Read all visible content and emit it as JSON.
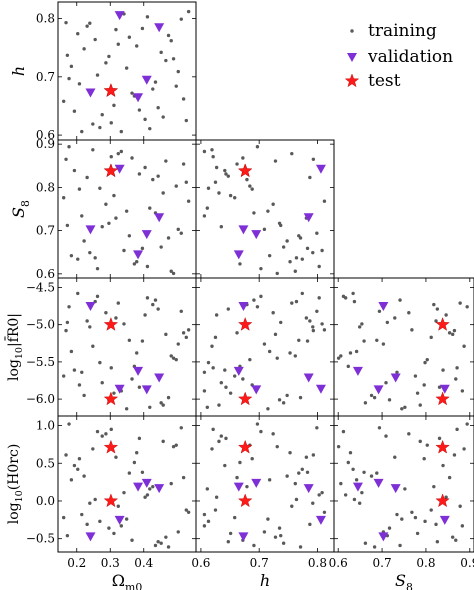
{
  "chart_data": {
    "type": "scatter",
    "subtype": "corner-plot",
    "title": "",
    "parameters": [
      {
        "key": "Om",
        "label": "Ωm0",
        "range": [
          0.15,
          0.55
        ],
        "ticks": [
          {
            "v": 0.2,
            "t": "0.2"
          },
          {
            "v": 0.3,
            "t": "0.3"
          },
          {
            "v": 0.4,
            "t": "0.4"
          }
        ]
      },
      {
        "key": "h",
        "label": "h",
        "range": [
          0.595,
          0.825
        ],
        "ticks": [
          {
            "v": 0.6,
            "t": "0.6"
          },
          {
            "v": 0.7,
            "t": "0.7"
          },
          {
            "v": 0.8,
            "t": "0.8"
          }
        ]
      },
      {
        "key": "S8",
        "label": "S8",
        "range": [
          0.595,
          0.905
        ],
        "ticks": [
          {
            "v": 0.6,
            "t": "0.6"
          },
          {
            "v": 0.7,
            "t": "0.7"
          },
          {
            "v": 0.8,
            "t": "0.8"
          },
          {
            "v": 0.9,
            "t": "0.9"
          }
        ]
      },
      {
        "key": "fR0",
        "label": "log10|f̄R0|",
        "range": [
          -6.2,
          -4.4
        ],
        "ticks": [
          {
            "v": -4.5,
            "t": "−4.5"
          },
          {
            "v": -5.0,
            "t": "−5.0"
          },
          {
            "v": -5.5,
            "t": "−5.5"
          },
          {
            "v": -6.0,
            "t": "−6.0"
          }
        ]
      },
      {
        "key": "rc",
        "label": "log10(H0 rc)",
        "range": [
          -0.65,
          1.1
        ],
        "ticks": [
          {
            "v": -0.5,
            "t": "−0.5"
          },
          {
            "v": 0.0,
            "t": "0.0"
          },
          {
            "v": 0.5,
            "t": "0.5"
          },
          {
            "v": 1.0,
            "t": "1.0"
          }
        ]
      }
    ],
    "axis_labels": {
      "Om": {
        "pre": "Ω",
        "sub": "m0"
      },
      "h": {
        "pre": "h",
        "sub": ""
      },
      "S8": {
        "pre": "S",
        "sub": "8"
      },
      "fR0": {
        "pre": "log",
        "sub": "10",
        "post": "|f̄R0|"
      },
      "rc": {
        "pre": "log",
        "sub": "10",
        "post": "(H0rc)"
      }
    },
    "panels": [
      {
        "x": "Om",
        "y": "h"
      },
      {
        "x": "Om",
        "y": "S8"
      },
      {
        "x": "h",
        "y": "S8"
      },
      {
        "x": "Om",
        "y": "fR0"
      },
      {
        "x": "h",
        "y": "fR0"
      },
      {
        "x": "S8",
        "y": "fR0"
      },
      {
        "x": "Om",
        "y": "rc"
      },
      {
        "x": "h",
        "y": "rc"
      },
      {
        "x": "S8",
        "y": "rc"
      }
    ],
    "series": [
      {
        "name": "training",
        "marker": "dot",
        "color": "#595959",
        "points": [
          {
            "Om": 0.168,
            "h": 0.793,
            "S8": 0.865,
            "fR0": -5.08,
            "rc": 0.61
          },
          {
            "Om": 0.215,
            "h": 0.606,
            "S8": 0.734,
            "fR0": -5.64,
            "rc": -0.18
          },
          {
            "Om": 0.262,
            "h": 0.703,
            "S8": 0.612,
            "fR0": -4.62,
            "rc": 0.92
          },
          {
            "Om": 0.311,
            "h": 0.651,
            "S8": 0.781,
            "fR0": -5.92,
            "rc": -0.43
          },
          {
            "Om": 0.357,
            "h": 0.768,
            "S8": 0.688,
            "fR0": -5.21,
            "rc": 0.37
          },
          {
            "Om": 0.404,
            "h": 0.627,
            "S8": 0.846,
            "fR0": -4.87,
            "rc": 0.05
          },
          {
            "Om": 0.452,
            "h": 0.742,
            "S8": 0.662,
            "fR0": -6.05,
            "rc": -0.56
          },
          {
            "Om": 0.497,
            "h": 0.684,
            "S8": 0.803,
            "fR0": -5.47,
            "rc": 0.74
          },
          {
            "Om": 0.184,
            "h": 0.718,
            "S8": 0.642,
            "fR0": -5.36,
            "rc": 0.28
          },
          {
            "Om": 0.231,
            "h": 0.787,
            "S8": 0.823,
            "fR0": -4.95,
            "rc": -0.31
          },
          {
            "Om": 0.276,
            "h": 0.635,
            "S8": 0.709,
            "fR0": -5.78,
            "rc": 0.86
          },
          {
            "Om": 0.324,
            "h": 0.756,
            "S8": 0.878,
            "fR0": -4.71,
            "rc": -0.07
          },
          {
            "Om": 0.372,
            "h": 0.667,
            "S8": 0.623,
            "fR0": -5.56,
            "rc": 0.51
          },
          {
            "Om": 0.418,
            "h": 0.611,
            "S8": 0.752,
            "fR0": -6.11,
            "rc": 0.16
          },
          {
            "Om": 0.466,
            "h": 0.728,
            "S8": 0.861,
            "fR0": -5.13,
            "rc": -0.48
          },
          {
            "Om": 0.512,
            "h": 0.799,
            "S8": 0.694,
            "fR0": -4.82,
            "rc": 0.97
          },
          {
            "Om": 0.161,
            "h": 0.658,
            "S8": 0.776,
            "fR0": -5.69,
            "rc": -0.22
          },
          {
            "Om": 0.203,
            "h": 0.774,
            "S8": 0.634,
            "fR0": -4.58,
            "rc": 0.42
          },
          {
            "Om": 0.248,
            "h": 0.619,
            "S8": 0.887,
            "fR0": -5.29,
            "rc": 0.69
          },
          {
            "Om": 0.296,
            "h": 0.735,
            "S8": 0.717,
            "fR0": -6.01,
            "rc": -0.36
          },
          {
            "Om": 0.341,
            "h": 0.808,
            "S8": 0.654,
            "fR0": -4.99,
            "rc": 0.11
          },
          {
            "Om": 0.387,
            "h": 0.643,
            "S8": 0.831,
            "fR0": -5.84,
            "rc": 0.83
          },
          {
            "Om": 0.435,
            "h": 0.691,
            "S8": 0.741,
            "fR0": -4.67,
            "rc": -0.59
          },
          {
            "Om": 0.482,
            "h": 0.762,
            "S8": 0.606,
            "fR0": -5.42,
            "rc": 0.23
          },
          {
            "Om": 0.527,
            "h": 0.625,
            "S8": 0.812,
            "fR0": -5.17,
            "rc": -0.12
          },
          {
            "Om": 0.177,
            "h": 0.697,
            "S8": 0.894,
            "fR0": -4.76,
            "rc": 1.02
          },
          {
            "Om": 0.222,
            "h": 0.748,
            "S8": 0.676,
            "fR0": -5.95,
            "rc": 0.33
          },
          {
            "Om": 0.269,
            "h": 0.613,
            "S8": 0.798,
            "fR0": -5.51,
            "rc": -0.27
          },
          {
            "Om": 0.317,
            "h": 0.781,
            "S8": 0.729,
            "fR0": -4.91,
            "rc": 0.58
          },
          {
            "Om": 0.365,
            "h": 0.672,
            "S8": 0.868,
            "fR0": -5.73,
            "rc": -0.52
          },
          {
            "Om": 0.411,
            "h": 0.803,
            "S8": 0.617,
            "fR0": -4.64,
            "rc": 0.08
          },
          {
            "Om": 0.458,
            "h": 0.631,
            "S8": 0.787,
            "fR0": -6.08,
            "rc": 0.79
          },
          {
            "Om": 0.503,
            "h": 0.709,
            "S8": 0.703,
            "fR0": -5.26,
            "rc": -0.41
          },
          {
            "Om": 0.193,
            "h": 0.641,
            "S8": 0.839,
            "fR0": -5.61,
            "rc": 0.47
          },
          {
            "Om": 0.239,
            "h": 0.792,
            "S8": 0.649,
            "fR0": -5.03,
            "rc": -0.03
          },
          {
            "Om": 0.287,
            "h": 0.724,
            "S8": 0.761,
            "fR0": -4.84,
            "rc": 0.89
          },
          {
            "Om": 0.333,
            "h": 0.606,
            "S8": 0.883,
            "fR0": -5.89,
            "rc": -0.33
          },
          {
            "Om": 0.379,
            "h": 0.753,
            "S8": 0.628,
            "fR0": -5.38,
            "rc": 0.64
          },
          {
            "Om": 0.427,
            "h": 0.679,
            "S8": 0.818,
            "fR0": -4.73,
            "rc": 0.19
          },
          {
            "Om": 0.474,
            "h": 0.771,
            "S8": 0.683,
            "fR0": -5.98,
            "rc": -0.61
          },
          {
            "Om": 0.519,
            "h": 0.662,
            "S8": 0.854,
            "fR0": -5.11,
            "rc": 0.31
          },
          {
            "Om": 0.172,
            "h": 0.737,
            "S8": 0.712,
            "fR0": -4.97,
            "rc": -0.46
          },
          {
            "Om": 0.208,
            "h": 0.688,
            "S8": 0.796,
            "fR0": -5.81,
            "rc": 0.56
          },
          {
            "Om": 0.255,
            "h": 0.764,
            "S8": 0.637,
            "fR0": -4.69,
            "rc": 0.02
          },
          {
            "Om": 0.303,
            "h": 0.621,
            "S8": 0.871,
            "fR0": -5.58,
            "rc": 0.95
          },
          {
            "Om": 0.349,
            "h": 0.715,
            "S8": 0.745,
            "fR0": -6.13,
            "rc": -0.24
          },
          {
            "Om": 0.396,
            "h": 0.783,
            "S8": 0.659,
            "fR0": -5.22,
            "rc": 0.38
          },
          {
            "Om": 0.443,
            "h": 0.647,
            "S8": 0.826,
            "fR0": -4.79,
            "rc": -0.54
          },
          {
            "Om": 0.489,
            "h": 0.731,
            "S8": 0.601,
            "fR0": -5.45,
            "rc": 0.72
          },
          {
            "Om": 0.534,
            "h": 0.812,
            "S8": 0.768,
            "fR0": -5.07,
            "rc": -0.15
          }
        ]
      },
      {
        "name": "validation",
        "marker": "triangle-down",
        "color": "#7e2fd6",
        "points": [
          {
            "Om": 0.241,
            "h": 0.673,
            "S8": 0.703,
            "fR0": -4.75,
            "rc": -0.47
          },
          {
            "Om": 0.328,
            "h": 0.806,
            "S8": 0.843,
            "fR0": -5.86,
            "rc": -0.25
          },
          {
            "Om": 0.383,
            "h": 0.665,
            "S8": 0.645,
            "fR0": -5.62,
            "rc": 0.19
          },
          {
            "Om": 0.409,
            "h": 0.695,
            "S8": 0.692,
            "fR0": -5.87,
            "rc": 0.24
          },
          {
            "Om": 0.446,
            "h": 0.785,
            "S8": 0.731,
            "fR0": -5.71,
            "rc": 0.17
          }
        ]
      },
      {
        "name": "test",
        "marker": "star",
        "color": "#ff1a1a",
        "points": [
          {
            "Om": 0.302,
            "h": 0.676,
            "S8": 0.838,
            "fR0": -5.0,
            "rc": 0.71
          },
          {
            "Om": 0.302,
            "h": 0.676,
            "S8": 0.838,
            "fR0": -6.0,
            "rc": 0.0
          }
        ]
      }
    ],
    "legend": {
      "position": "top-right",
      "entries": [
        "training",
        "validation",
        "test"
      ]
    }
  }
}
